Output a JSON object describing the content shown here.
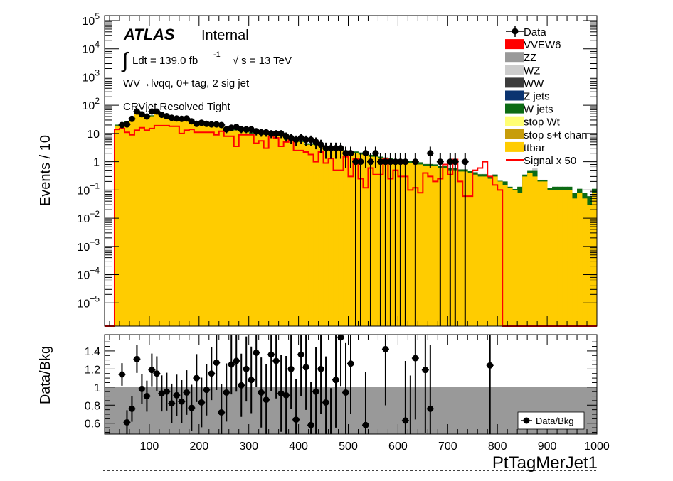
{
  "chart_data": {
    "type": "bar",
    "top": {
      "ylabel": "Events / 10",
      "yscale": "log",
      "ylim": [
        1.5e-06,
        150000
      ],
      "ytick_labels": [
        {
          "base": "10",
          "exp": "5"
        },
        {
          "base": "10",
          "exp": "4"
        },
        {
          "base": "10",
          "exp": "3"
        },
        {
          "base": "10",
          "exp": "2"
        },
        {
          "base": "10",
          "exp": ""
        },
        {
          "base": "1",
          "exp": ""
        },
        {
          "base": "10",
          "exp": "−1"
        },
        {
          "base": "10",
          "exp": "−2"
        },
        {
          "base": "10",
          "exp": "−3"
        },
        {
          "base": "10",
          "exp": "−4"
        },
        {
          "base": "10",
          "exp": "−5"
        }
      ],
      "ytick_values": [
        100000,
        10000,
        1000,
        100,
        10,
        1,
        0.1,
        0.01,
        0.001,
        0.0001,
        1e-05
      ],
      "xlim": [
        10,
        1000
      ],
      "atlas_label": "ATLAS",
      "atlas_status": "Internal",
      "lumi_prefix": "Ldt = 139.0 fb",
      "lumi_exp": "-1",
      "energy_text": "s = 13 TeV",
      "channel_label": "WV→lνqq, 0+ tag, 2 sig jet",
      "region_label": "CRVjet Resolved Tight",
      "legend": [
        {
          "label": "Data",
          "kind": "marker",
          "color": "#000000"
        },
        {
          "label": "VVEW6",
          "kind": "box",
          "color": "#ff0000"
        },
        {
          "label": "ZZ",
          "kind": "box",
          "color": "#999999"
        },
        {
          "label": "WZ",
          "kind": "box",
          "color": "#cccccc"
        },
        {
          "label": "WW",
          "kind": "box",
          "color": "#3c3c3c"
        },
        {
          "label": "Z jets",
          "kind": "box",
          "color": "#0b3470"
        },
        {
          "label": "W jets",
          "kind": "box",
          "color": "#0c6b14"
        },
        {
          "label": "stop Wt",
          "kind": "box",
          "color": "#ffff73"
        },
        {
          "label": "stop s+t chan",
          "kind": "box",
          "color": "#c79d0a"
        },
        {
          "label": "ttbar",
          "kind": "box",
          "color": "#ffcc00"
        },
        {
          "label": "Signal x 50",
          "kind": "line",
          "color": "#ff0000"
        }
      ],
      "bin_edges_start": 10,
      "bin_width": 10,
      "series": [
        {
          "name": "ttbar",
          "color": "#ffcc00",
          "values": [
            0,
            0,
            19,
            21,
            25,
            28,
            55,
            44,
            40,
            41,
            50,
            44,
            37,
            33,
            33,
            32,
            30,
            29,
            25,
            22,
            22,
            19,
            20,
            20,
            14,
            12,
            13,
            14,
            11,
            10,
            10,
            9,
            9,
            8,
            8,
            8,
            6,
            6,
            5.5,
            5,
            4,
            4,
            3.8,
            3.5,
            3,
            3,
            2.6,
            2.5,
            2.2,
            2,
            2,
            1.8,
            1.8,
            1.5,
            1.5,
            1.3,
            1.2,
            1.1,
            1.0,
            1.0,
            0.9,
            0.9,
            0.8,
            0.8,
            0.7,
            0.7,
            0.7,
            0.6,
            0.6,
            0.5,
            0.5,
            0.45,
            0.45,
            0.4,
            0.35,
            0.3,
            0.3,
            0.25,
            0.3,
            0.2,
            0.15,
            0.12,
            0.1,
            0.08,
            0.3,
            0.4,
            0.3,
            0.2,
            0.2,
            0.1,
            0.1,
            0.1,
            0.1,
            0.1,
            0.05,
            0.08,
            0.05,
            0.03,
            0.08
          ]
        },
        {
          "name": "W jets",
          "color": "#0c6b14",
          "values": [
            0,
            0,
            1.5,
            1.5,
            2,
            2,
            4,
            3.5,
            3,
            3,
            3.5,
            3,
            3,
            2.5,
            2.5,
            2.5,
            2.2,
            2.2,
            2,
            1.8,
            1.8,
            1.6,
            1.6,
            1.6,
            1.2,
            1.1,
            1.1,
            1.1,
            1,
            1,
            0.9,
            0.9,
            0.8,
            0.8,
            0.8,
            0.7,
            0.6,
            0.6,
            0.6,
            0.5,
            0.5,
            0.5,
            0.5,
            0.4,
            0.4,
            0.4,
            0.35,
            0.35,
            0.3,
            0.3,
            0.3,
            0.3,
            0.3,
            0.25,
            0.25,
            0.2,
            0.2,
            0.2,
            0.2,
            0.2,
            0.15,
            0.15,
            0.15,
            0.15,
            0.12,
            0.12,
            0.1,
            0.1,
            0.1,
            0.08,
            0.08,
            0.08,
            0.08,
            0.07,
            0.07,
            0.06,
            0.06,
            0.05,
            0.05,
            0.01,
            0.05,
            0.01,
            0.008,
            0.05,
            0.05,
            0.1,
            0.2,
            0.03,
            0.03,
            0.02,
            0.03,
            0.03,
            0.03,
            0.03,
            0.03,
            0.03,
            0.03,
            0.03,
            0.03
          ]
        },
        {
          "name": "WZ",
          "color": "#cccccc",
          "values": [
            0,
            0,
            0.3,
            0.3,
            0.4,
            0.4,
            0.6,
            0.5,
            0.5,
            0.5,
            0.5,
            0.5,
            0.5,
            0.4,
            0.4,
            0.4,
            0.4,
            0.3,
            0.3,
            0.3,
            0.3,
            0.3,
            0.3,
            0.3,
            0.2,
            0.2,
            0.2,
            0.2,
            0.2,
            0.2,
            0.15,
            0.15,
            0.15,
            0.15,
            0.15,
            0.12,
            0.12,
            0.12,
            0.1,
            0.1,
            0.1,
            0.1,
            0.1,
            0.1,
            0.08,
            0.08,
            0.08,
            0.08,
            0.07,
            0.07,
            0.07,
            0.06,
            0.06,
            0.06,
            0.05,
            0.05,
            0.05,
            0.05,
            0.04,
            0.04,
            0.04,
            0.04,
            0.03,
            0.03,
            0.03,
            0.03,
            0.03,
            0.02,
            0.02,
            0.02,
            0.02,
            0.02,
            0.02,
            0.02,
            0.02,
            0.01,
            0.01,
            0.01,
            0.01,
            0,
            0,
            0,
            0,
            0,
            0,
            0,
            0.08,
            0,
            0,
            0,
            0,
            0,
            0,
            0,
            0,
            0,
            0,
            0,
            0
          ]
        },
        {
          "name": "Signal x 50",
          "color": "#ff0000",
          "values": [
            0,
            0,
            14,
            15,
            11,
            9,
            13,
            16,
            13,
            15,
            19,
            19,
            19,
            18,
            18,
            10,
            13,
            14,
            11,
            11,
            11,
            11,
            9,
            12,
            8,
            8,
            3.5,
            9,
            9,
            9,
            4.5,
            5.5,
            3,
            8,
            7,
            3.5,
            5,
            6,
            2.5,
            2.5,
            2.2,
            1.8,
            1.0,
            2.2,
            0.9,
            1.3,
            0.5,
            0.5,
            1.5,
            0.3,
            1.3,
            0.25,
            0.12,
            0.6,
            0.35,
            0.35,
            1.3,
            0.25,
            0.5,
            0.3,
            0.3,
            0.1,
            0.12,
            0.08,
            0.4,
            0.3,
            0.2,
            0.25,
            0.8,
            0.35,
            1.2,
            0.2,
            0.06,
            0.06,
            0.5,
            0.6,
            1.0,
            0.3,
            0.15,
            0.1,
            0,
            0,
            0,
            0,
            0,
            0,
            0,
            0,
            0,
            0,
            0,
            0,
            0,
            0,
            0,
            0,
            0,
            0,
            0
          ]
        }
      ],
      "data": [
        {
          "x": 45,
          "y": 20
        },
        {
          "x": 55,
          "y": 21
        },
        {
          "x": 65,
          "y": 33
        },
        {
          "x": 75,
          "y": 60
        },
        {
          "x": 85,
          "y": 48
        },
        {
          "x": 95,
          "y": 40
        },
        {
          "x": 105,
          "y": 60
        },
        {
          "x": 115,
          "y": 60
        },
        {
          "x": 125,
          "y": 46
        },
        {
          "x": 135,
          "y": 41
        },
        {
          "x": 145,
          "y": 36
        },
        {
          "x": 155,
          "y": 34
        },
        {
          "x": 165,
          "y": 33
        },
        {
          "x": 175,
          "y": 34
        },
        {
          "x": 185,
          "y": 27
        },
        {
          "x": 195,
          "y": 22
        },
        {
          "x": 205,
          "y": 24
        },
        {
          "x": 215,
          "y": 22
        },
        {
          "x": 225,
          "y": 21
        },
        {
          "x": 235,
          "y": 21
        },
        {
          "x": 245,
          "y": 20
        },
        {
          "x": 255,
          "y": 14
        },
        {
          "x": 265,
          "y": 16
        },
        {
          "x": 275,
          "y": 17
        },
        {
          "x": 285,
          "y": 14
        },
        {
          "x": 295,
          "y": 14
        },
        {
          "x": 305,
          "y": 14
        },
        {
          "x": 315,
          "y": 12
        },
        {
          "x": 325,
          "y": 11
        },
        {
          "x": 335,
          "y": 11
        },
        {
          "x": 345,
          "y": 10
        },
        {
          "x": 355,
          "y": 10
        },
        {
          "x": 365,
          "y": 10
        },
        {
          "x": 375,
          "y": 8
        },
        {
          "x": 385,
          "y": 7
        },
        {
          "x": 395,
          "y": 6
        },
        {
          "x": 405,
          "y": 7
        },
        {
          "x": 415,
          "y": 6
        },
        {
          "x": 425,
          "y": 6
        },
        {
          "x": 435,
          "y": 5
        },
        {
          "x": 445,
          "y": 4
        },
        {
          "x": 455,
          "y": 3
        },
        {
          "x": 465,
          "y": 3
        },
        {
          "x": 475,
          "y": 3
        },
        {
          "x": 485,
          "y": 3
        },
        {
          "x": 495,
          "y": 2
        },
        {
          "x": 505,
          "y": 2
        },
        {
          "x": 515,
          "y": 1
        },
        {
          "x": 525,
          "y": 1
        },
        {
          "x": 535,
          "y": 2
        },
        {
          "x": 545,
          "y": 1
        },
        {
          "x": 555,
          "y": 2
        },
        {
          "x": 565,
          "y": 1
        },
        {
          "x": 575,
          "y": 1
        },
        {
          "x": 585,
          "y": 1
        },
        {
          "x": 595,
          "y": 1
        },
        {
          "x": 605,
          "y": 1
        },
        {
          "x": 615,
          "y": 1
        },
        {
          "x": 635,
          "y": 1
        },
        {
          "x": 665,
          "y": 2
        },
        {
          "x": 685,
          "y": 1
        },
        {
          "x": 705,
          "y": 1
        },
        {
          "x": 715,
          "y": 1
        },
        {
          "x": 735,
          "y": 1
        }
      ]
    },
    "bottom": {
      "ylabel": "Data/Bkg",
      "ylim": [
        0.48,
        1.58
      ],
      "yticks": [
        0.6,
        0.8,
        1,
        1.2,
        1.4
      ],
      "ytick_labels": [
        "0.6",
        "0.8",
        "1",
        "1.2",
        "1.4"
      ],
      "xticks": [
        100,
        200,
        300,
        400,
        500,
        600,
        700,
        800,
        900,
        1000
      ],
      "xtick_labels": [
        "100",
        "200",
        "300",
        "400",
        "500",
        "600",
        "700",
        "800",
        "900",
        "1000"
      ],
      "xlabel": "PtTagMerJet1",
      "band_upper": 1.0,
      "legend_label": "Data/Bkg",
      "ratio": [
        {
          "x": 45,
          "y": 1.14
        },
        {
          "x": 55,
          "y": 0.61
        },
        {
          "x": 65,
          "y": 0.76
        },
        {
          "x": 75,
          "y": 1.31
        },
        {
          "x": 85,
          "y": 0.98
        },
        {
          "x": 95,
          "y": 0.9
        },
        {
          "x": 105,
          "y": 1.19
        },
        {
          "x": 115,
          "y": 1.15
        },
        {
          "x": 125,
          "y": 0.93
        },
        {
          "x": 135,
          "y": 0.95
        },
        {
          "x": 145,
          "y": 0.82
        },
        {
          "x": 155,
          "y": 0.91
        },
        {
          "x": 165,
          "y": 0.84
        },
        {
          "x": 175,
          "y": 0.94
        },
        {
          "x": 185,
          "y": 0.77
        },
        {
          "x": 195,
          "y": 1.1
        },
        {
          "x": 205,
          "y": 0.83
        },
        {
          "x": 215,
          "y": 0.97
        },
        {
          "x": 225,
          "y": 1.15
        },
        {
          "x": 235,
          "y": 1.27
        },
        {
          "x": 245,
          "y": 0.72
        },
        {
          "x": 255,
          "y": 0.94
        },
        {
          "x": 265,
          "y": 1.25
        },
        {
          "x": 275,
          "y": 1.29
        },
        {
          "x": 285,
          "y": 1.02
        },
        {
          "x": 295,
          "y": 1.2
        },
        {
          "x": 305,
          "y": 1.08
        },
        {
          "x": 315,
          "y": 1.38
        },
        {
          "x": 325,
          "y": 0.94
        },
        {
          "x": 335,
          "y": 0.86
        },
        {
          "x": 345,
          "y": 1.36
        },
        {
          "x": 355,
          "y": 1.29
        },
        {
          "x": 365,
          "y": 0.93
        },
        {
          "x": 375,
          "y": 0.91
        },
        {
          "x": 385,
          "y": 1.2
        },
        {
          "x": 395,
          "y": 0.64
        },
        {
          "x": 405,
          "y": 1.36
        },
        {
          "x": 415,
          "y": 1.22
        },
        {
          "x": 425,
          "y": 0.58
        },
        {
          "x": 435,
          "y": 0.95
        },
        {
          "x": 445,
          "y": 1.2
        },
        {
          "x": 455,
          "y": 0.83
        },
        {
          "x": 465,
          "y": 0.47
        },
        {
          "x": 475,
          "y": 1.08
        },
        {
          "x": 485,
          "y": 1.55
        },
        {
          "x": 495,
          "y": 0.94
        },
        {
          "x": 505,
          "y": 1.26
        },
        {
          "x": 535,
          "y": 0.58
        },
        {
          "x": 575,
          "y": 1.42
        },
        {
          "x": 615,
          "y": 0.63
        },
        {
          "x": 625,
          "y": 0.46
        },
        {
          "x": 635,
          "y": 1.32
        },
        {
          "x": 655,
          "y": 1.19
        },
        {
          "x": 665,
          "y": 0.76
        },
        {
          "x": 785,
          "y": 1.24
        }
      ]
    }
  }
}
